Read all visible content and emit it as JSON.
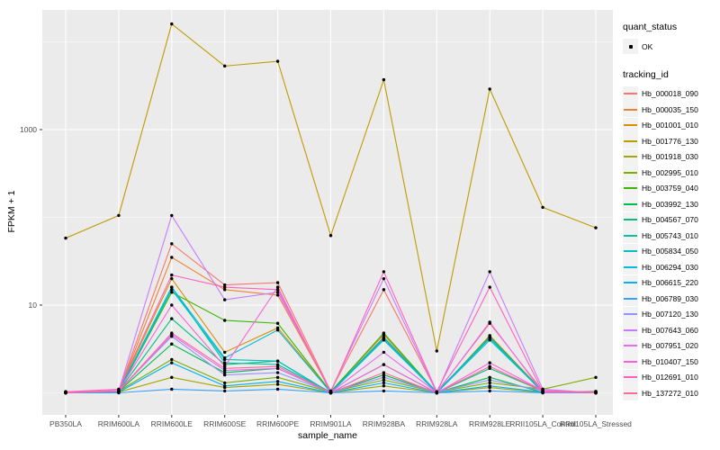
{
  "legend": {
    "quant_title": "quant_status",
    "quant_items": [
      {
        "label": "OK",
        "symbol": "point"
      }
    ],
    "tracking_title": "tracking_id"
  },
  "chart_data": {
    "type": "line",
    "title": "",
    "xlabel": "sample_name",
    "ylabel": "FPKM + 1",
    "y_scale": "log10",
    "ylim": [
      0.85,
      22000
    ],
    "y_ticks": [
      10,
      1000
    ],
    "y_minor": [
      1,
      100,
      10000
    ],
    "grid": true,
    "legend_position": "right",
    "panel_bg": "#EBEBEB",
    "grid_color": "#FFFFFF",
    "point_color": "#000000",
    "tick_label_color": "#4D4D4D",
    "categories": [
      "PB350LA",
      "RRIM600LA",
      "RRIM600LE",
      "RRIM600SE",
      "RRIM600PE",
      "RRIM901LA",
      "RRIM928BA",
      "RRIM928LA",
      "RRIM928LE",
      "RRII105LA_Control",
      "RRII105LA_Stressed"
    ],
    "series": [
      {
        "name": "Hb_000018_090",
        "color": "#F8766D",
        "values": [
          1.02,
          1.05,
          50,
          17,
          18,
          1.05,
          15,
          1.02,
          6.2,
          1.05,
          1.02
        ]
      },
      {
        "name": "Hb_000035_150",
        "color": "#EA8331",
        "values": [
          1.0,
          1.04,
          35,
          15,
          13,
          1.04,
          4.6,
          1.0,
          4.5,
          1.04,
          1.0
        ]
      },
      {
        "name": "Hb_001001_010",
        "color": "#D89000",
        "values": [
          1.03,
          1.06,
          20,
          2.9,
          5.5,
          1.03,
          4.2,
          1.03,
          4.2,
          1.03,
          1.03
        ]
      },
      {
        "name": "Hb_001776_130",
        "color": "#C09B00",
        "values": [
          58,
          105,
          16000,
          5300,
          6000,
          62,
          3700,
          3.0,
          2900,
          130,
          76
        ]
      },
      {
        "name": "Hb_001918_030",
        "color": "#A3A500",
        "values": [
          1.0,
          1.02,
          1.5,
          1.15,
          1.25,
          1.0,
          1.2,
          1.0,
          1.15,
          1.0,
          1.02
        ]
      },
      {
        "name": "Hb_002995_010",
        "color": "#7CAE00",
        "values": [
          1.02,
          1.05,
          2.4,
          1.3,
          1.5,
          1.02,
          1.4,
          1.02,
          1.3,
          1.1,
          1.5
        ]
      },
      {
        "name": "Hb_003759_040",
        "color": "#39B600",
        "values": [
          1.0,
          1.03,
          14,
          6.7,
          6.2,
          1.03,
          4.8,
          1.0,
          4.4,
          1.03,
          1.0
        ]
      },
      {
        "name": "Hb_003992_130",
        "color": "#00BB4E",
        "values": [
          1.01,
          1.04,
          3.6,
          1.7,
          1.9,
          1.01,
          1.6,
          1.01,
          1.5,
          1.01,
          1.04
        ]
      },
      {
        "name": "Hb_004567_070",
        "color": "#00BF7D",
        "values": [
          1.0,
          1.05,
          7.0,
          2.1,
          2.3,
          1.0,
          2.1,
          1.0,
          1.9,
          1.05,
          1.0
        ]
      },
      {
        "name": "Hb_005743_010",
        "color": "#00C1A3",
        "values": [
          1.02,
          1.04,
          16,
          2.2,
          2.1,
          1.02,
          4.3,
          1.02,
          4.3,
          1.02,
          1.02
        ]
      },
      {
        "name": "Hb_005834_050",
        "color": "#00BFC4",
        "values": [
          1.0,
          1.03,
          15,
          2.4,
          2.3,
          1.0,
          4.1,
          1.0,
          4.0,
          1.03,
          1.0
        ]
      },
      {
        "name": "Hb_006294_030",
        "color": "#00BAE0",
        "values": [
          1.01,
          1.05,
          16,
          2.5,
          5.2,
          1.01,
          4.0,
          1.01,
          4.2,
          1.01,
          1.01
        ]
      },
      {
        "name": "Hb_006615_220",
        "color": "#00B0F6",
        "values": [
          1.0,
          1.02,
          2.2,
          1.2,
          1.35,
          1.0,
          1.3,
          1.0,
          1.2,
          1.02,
          1.0
        ]
      },
      {
        "name": "Hb_006789_030",
        "color": "#35A2FF",
        "values": [
          1.0,
          1.0,
          1.1,
          1.05,
          1.1,
          1.0,
          1.05,
          1.0,
          1.05,
          1.0,
          1.0
        ]
      },
      {
        "name": "Hb_007120_130",
        "color": "#9590FF",
        "values": [
          1.02,
          1.06,
          4.4,
          1.6,
          1.7,
          1.02,
          1.5,
          1.02,
          1.4,
          1.06,
          1.02
        ]
      },
      {
        "name": "Hb_007643_060",
        "color": "#C77CFF",
        "values": [
          1.0,
          1.05,
          105,
          11.5,
          14,
          1.05,
          20,
          1.0,
          24,
          1.1,
          1.0
        ]
      },
      {
        "name": "Hb_007951_020",
        "color": "#E76BF3",
        "values": [
          1.01,
          1.04,
          4.6,
          1.8,
          1.9,
          1.01,
          2.9,
          1.01,
          6.4,
          1.01,
          1.01
        ]
      },
      {
        "name": "Hb_010407_150",
        "color": "#FA62DB",
        "values": [
          1.0,
          1.06,
          10,
          2.0,
          16,
          1.0,
          2.1,
          1.0,
          2.2,
          1.06,
          1.0
        ]
      },
      {
        "name": "Hb_012691_010",
        "color": "#FF62BC",
        "values": [
          1.03,
          1.1,
          22,
          16,
          15,
          1.03,
          24,
          1.03,
          16,
          1.03,
          1.03
        ]
      },
      {
        "name": "Hb_137272_010",
        "color": "#FF6A98",
        "values": [
          1.0,
          1.05,
          4.8,
          1.9,
          2.0,
          1.0,
          1.7,
          1.0,
          2.0,
          1.05,
          1.0
        ]
      }
    ]
  }
}
